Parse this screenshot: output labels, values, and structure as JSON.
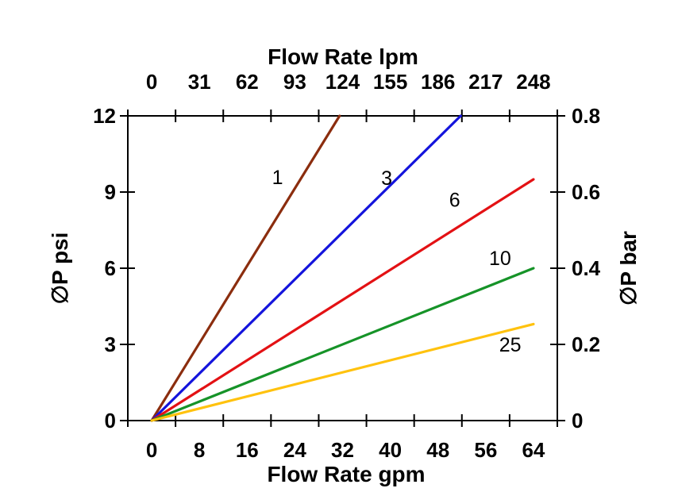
{
  "chart_data": {
    "type": "line",
    "top_axis": {
      "title": "Flow Rate lpm",
      "ticks": [
        "0",
        "31",
        "62",
        "93",
        "124",
        "155",
        "186",
        "217",
        "248"
      ]
    },
    "bottom_axis": {
      "title": "Flow Rate gpm",
      "ticks": [
        "0",
        "8",
        "16",
        "24",
        "32",
        "40",
        "48",
        "56",
        "64"
      ]
    },
    "left_axis": {
      "title": "∅P psi",
      "ticks": [
        "0",
        "3",
        "6",
        "9",
        "12"
      ]
    },
    "right_axis": {
      "title": "∅P bar",
      "ticks": [
        "0",
        "0.2",
        "0.4",
        "0.6",
        "0.8"
      ]
    },
    "xlim_gpm": [
      0,
      64
    ],
    "ylim_psi": [
      0,
      12
    ],
    "grid": false,
    "frame_color": "#000000",
    "series": [
      {
        "label": "1",
        "color": "#8B2D0E",
        "x": [
          0,
          31.5
        ],
        "y": [
          0,
          12
        ],
        "label_pos": {
          "gpm": 21.1,
          "psi": 9.6
        }
      },
      {
        "label": "3",
        "color": "#1414DC",
        "x": [
          0,
          51.8
        ],
        "y": [
          0,
          12
        ],
        "label_pos": {
          "gpm": 39.4,
          "psi": 9.56
        }
      },
      {
        "label": "6",
        "color": "#E31114",
        "x": [
          0,
          64.0
        ],
        "y": [
          0,
          9.5
        ],
        "label_pos": {
          "gpm": 50.8,
          "psi": 8.7
        }
      },
      {
        "label": "10",
        "color": "#169328",
        "x": [
          0,
          64.0
        ],
        "y": [
          0,
          6.0
        ],
        "label_pos": {
          "gpm": 58.4,
          "psi": 6.4
        }
      },
      {
        "label": "25",
        "color": "#FFC20E",
        "x": [
          0,
          64.0
        ],
        "y": [
          0,
          3.8
        ],
        "label_pos": {
          "gpm": 60.1,
          "psi": 3.0
        }
      }
    ]
  }
}
